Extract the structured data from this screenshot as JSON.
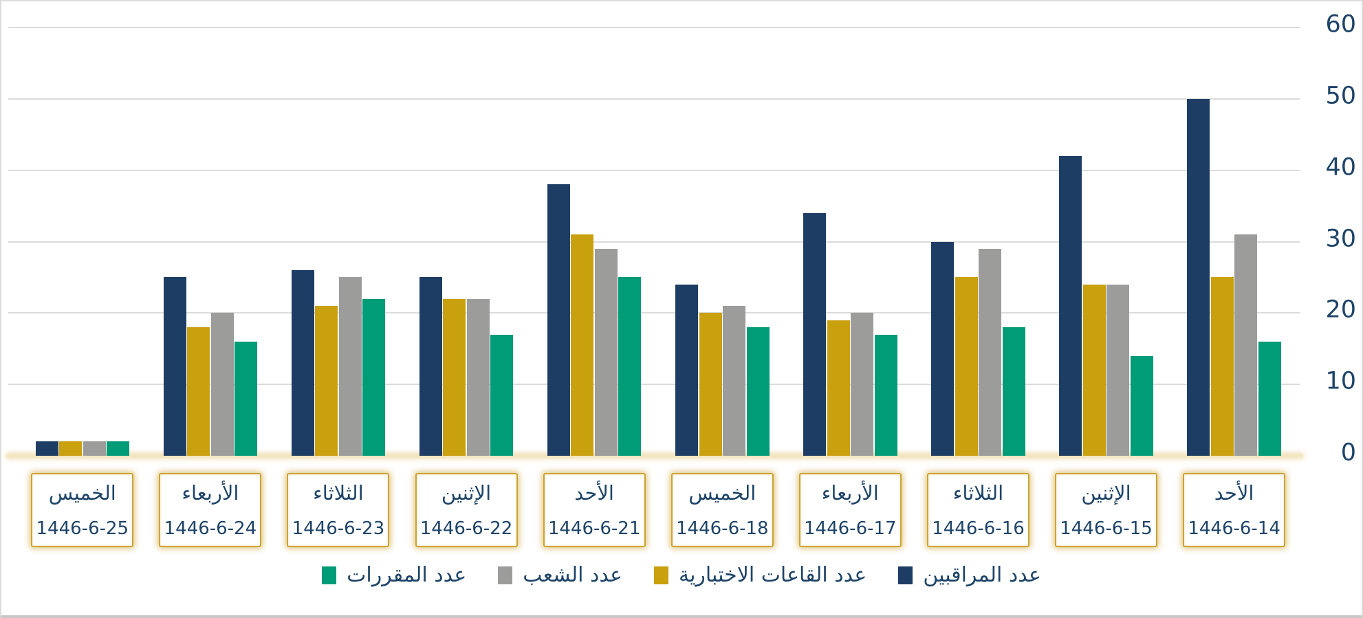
{
  "chart_data": {
    "type": "bar",
    "orientation": "vertical",
    "rtl": true,
    "title": "",
    "categories_screen_order": "left-to-right",
    "categories": [
      {
        "day": "الخميس",
        "date": "1446-6-25"
      },
      {
        "day": "الأربعاء",
        "date": "1446-6-24"
      },
      {
        "day": "الثلاثاء",
        "date": "1446-6-23"
      },
      {
        "day": "الإثنين",
        "date": "1446-6-22"
      },
      {
        "day": "الأحد",
        "date": "1446-6-21"
      },
      {
        "day": "الخميس",
        "date": "1446-6-18"
      },
      {
        "day": "الأربعاء",
        "date": "1446-6-17"
      },
      {
        "day": "الثلاثاء",
        "date": "1446-6-16"
      },
      {
        "day": "الإثنين",
        "date": "1446-6-15"
      },
      {
        "day": "الأحد",
        "date": "1446-6-14"
      }
    ],
    "series_bar_order_in_group": "left-to-right",
    "series": [
      {
        "name": "عدد المراقبين",
        "color": "#1E3D64",
        "values": [
          2,
          25,
          26,
          25,
          38,
          24,
          34,
          30,
          42,
          50
        ]
      },
      {
        "name": "عدد القاعات الاختبارية",
        "color": "#C9A00E",
        "values": [
          2,
          18,
          21,
          22,
          31,
          20,
          19,
          25,
          24,
          25
        ]
      },
      {
        "name": "عدد الشعب",
        "color": "#9C9C9A",
        "values": [
          2,
          20,
          25,
          22,
          29,
          21,
          20,
          29,
          24,
          31
        ]
      },
      {
        "name": "عدد المقررات",
        "color": "#009B77",
        "values": [
          2,
          16,
          22,
          17,
          25,
          18,
          17,
          18,
          14,
          16
        ]
      }
    ],
    "ylim": [
      0,
      60
    ],
    "yticks": [
      0,
      10,
      20,
      30,
      40,
      50,
      60
    ],
    "y_axis_side": "right",
    "grid": true,
    "legend_position": "bottom",
    "legend_screen_order_left_to_right": [
      "عدد المقررات",
      "عدد الشعب",
      "عدد القاعات الاختبارية",
      "عدد المراقبين"
    ]
  },
  "style_colors": {
    "text": "#1E4468",
    "gridline": "#DBDBDB",
    "axis_baseline": "#F3E6C0",
    "axis_baseline_glow": "rgba(233,210,147,0.65)",
    "day_box_border": "#CBA433",
    "background": "#FFFFFF"
  }
}
